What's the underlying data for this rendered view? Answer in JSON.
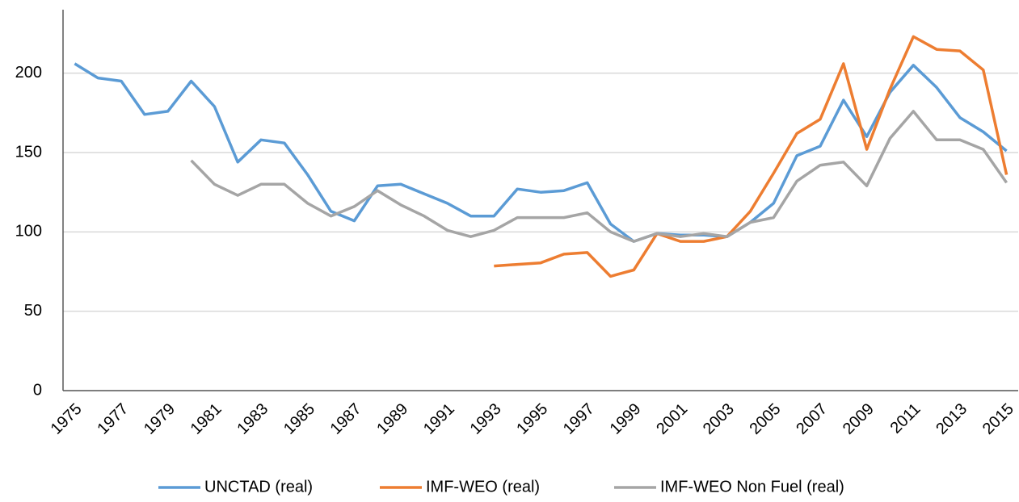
{
  "chart_data": {
    "type": "line",
    "categories": [
      "1975",
      null,
      "1977",
      null,
      "1979",
      null,
      "1981",
      null,
      "1983",
      null,
      "1985",
      null,
      "1987",
      null,
      "1989",
      null,
      "1991",
      null,
      "1993",
      null,
      "1995",
      null,
      "1997",
      null,
      "1999",
      null,
      "2001",
      null,
      "2003",
      null,
      "2005",
      null,
      "2007",
      null,
      "2009",
      null,
      "2011",
      null,
      "2013",
      null,
      "2015"
    ],
    "series": [
      {
        "name": "UNCTAD (real)",
        "color": "#5b9bd5",
        "values": [
          206,
          197,
          195,
          174,
          176,
          195,
          179,
          144,
          158,
          156,
          136,
          113,
          107,
          129,
          130,
          124,
          118,
          110,
          110,
          127,
          125,
          126,
          131,
          105,
          94,
          99,
          98,
          98,
          97,
          106,
          118,
          148,
          154,
          183,
          160,
          188,
          205,
          191,
          172,
          163,
          151
        ]
      },
      {
        "name": "IMF-WEO (real)",
        "color": "#ed7d31",
        "values": [
          null,
          null,
          null,
          null,
          null,
          null,
          null,
          null,
          null,
          null,
          null,
          null,
          null,
          null,
          null,
          null,
          null,
          null,
          78.5,
          79.5,
          80.5,
          86,
          87,
          72,
          76,
          99,
          94,
          94,
          97,
          113,
          137,
          162,
          171,
          206,
          152,
          190,
          223,
          215,
          214,
          202,
          136
        ]
      },
      {
        "name": "IMF-WEO Non Fuel (real)",
        "color": "#a5a5a5",
        "values": [
          null,
          null,
          null,
          null,
          null,
          145,
          130,
          123,
          130,
          130,
          118,
          110,
          116,
          126,
          117,
          110,
          101,
          97,
          101,
          109,
          109,
          109,
          112,
          100,
          94,
          99,
          97,
          99,
          97,
          106,
          109,
          132,
          142,
          144,
          129,
          159,
          176,
          158,
          158,
          152,
          131
        ]
      }
    ],
    "ylim": [
      0,
      240
    ],
    "yticks": [
      0,
      50,
      100,
      150,
      200
    ],
    "grid": true,
    "legend": "bottom"
  }
}
